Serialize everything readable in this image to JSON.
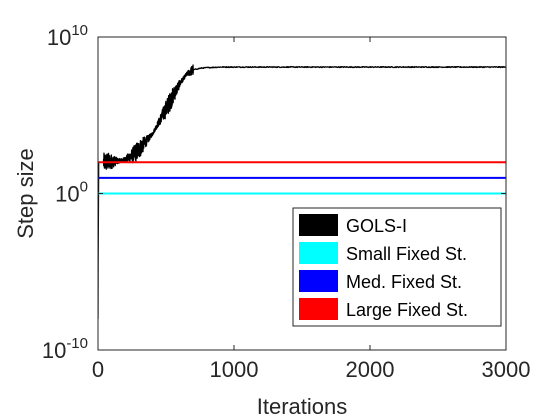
{
  "chart_data": {
    "type": "line",
    "title": "",
    "xlabel": "Iterations",
    "ylabel": "Step size",
    "xlim": [
      0,
      3000
    ],
    "ylim": [
      1e-10,
      10000000000.0
    ],
    "yscale": "log",
    "grid": false,
    "legend_position": "bottom-right",
    "x_ticks": [
      {
        "value": 0,
        "label": "0"
      },
      {
        "value": 1000,
        "label": "1000"
      },
      {
        "value": 2000,
        "label": "2000"
      },
      {
        "value": 3000,
        "label": "3000"
      }
    ],
    "y_ticks": [
      {
        "value": 1e-10,
        "base": "10",
        "exp": "-10"
      },
      {
        "value": 1,
        "base": "10",
        "exp": "0"
      },
      {
        "value": 10000000000.0,
        "base": "10",
        "exp": "10"
      }
    ],
    "series": [
      {
        "name": "GOLS-I",
        "color": "#000000",
        "kind": "noisy-line",
        "points": [
          {
            "x": 0,
            "y": 1e-08
          },
          {
            "x": 1,
            "y": 3.2e-05
          },
          {
            "x": 5,
            "y": 100
          },
          {
            "x": 40,
            "y": 100
          },
          {
            "x": 100,
            "y": 110
          },
          {
            "x": 150,
            "y": 120
          },
          {
            "x": 200,
            "y": 150
          },
          {
            "x": 250,
            "y": 250
          },
          {
            "x": 300,
            "y": 630
          },
          {
            "x": 350,
            "y": 2000
          },
          {
            "x": 400,
            "y": 6300
          },
          {
            "x": 450,
            "y": 40000
          },
          {
            "x": 500,
            "y": 250000
          },
          {
            "x": 550,
            "y": 1600000
          },
          {
            "x": 600,
            "y": 10000000
          },
          {
            "x": 650,
            "y": 40000000
          },
          {
            "x": 700,
            "y": 80000000
          },
          {
            "x": 750,
            "y": 100000000
          },
          {
            "x": 800,
            "y": 110000000
          },
          {
            "x": 900,
            "y": 120000000
          },
          {
            "x": 1000,
            "y": 120000000
          },
          {
            "x": 3000,
            "y": 120000000
          }
        ],
        "noise_start": 40,
        "noise_end": 700,
        "noise_decades": 0.6
      },
      {
        "name": "Small Fixed St.",
        "color": "#00ffff",
        "kind": "constant",
        "value": 1
      },
      {
        "name": "Med. Fixed St.",
        "color": "#0000ff",
        "kind": "constant",
        "value": 10
      },
      {
        "name": "Large Fixed St.",
        "color": "#ff0000",
        "kind": "constant",
        "value": 100
      }
    ]
  }
}
